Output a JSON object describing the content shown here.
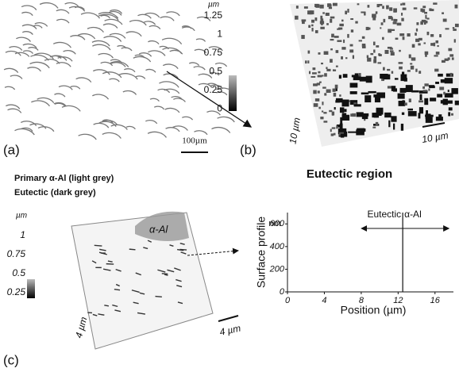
{
  "panels": {
    "a": {
      "label": "(a)",
      "scale_bar": "100µm",
      "colorbar_unit": "µm",
      "colorbar_ticks": [
        "1.25",
        "1",
        "0.75",
        "0.5",
        "0.25",
        "0"
      ]
    },
    "b": {
      "label": "(b)",
      "axis_y": "10 µm",
      "axis_x": "10 µm",
      "caption": "Eutectic region"
    },
    "legend": [
      "Primary α-Al (light grey)",
      "Eutectic (dark grey)"
    ],
    "c": {
      "label": "(c)",
      "colorbar_unit": "µm",
      "colorbar_ticks": [
        "1",
        "0.75",
        "0.5",
        "0.25"
      ],
      "region_label": "α-Al",
      "axis_y": "4 µm",
      "axis_x": "4 µm"
    }
  },
  "chart_data": {
    "type": "line",
    "x_label": "Position (µm)",
    "y_label": "Surface profile",
    "y_unit": "nm",
    "xlim": [
      0,
      18
    ],
    "ylim": [
      0,
      700
    ],
    "xticks": [
      0,
      4,
      8,
      12,
      16
    ],
    "yticks": [
      0,
      200,
      400,
      600
    ],
    "annotations": [
      "Eutectic",
      "α-Al"
    ],
    "boundary_x": 12.5
  }
}
